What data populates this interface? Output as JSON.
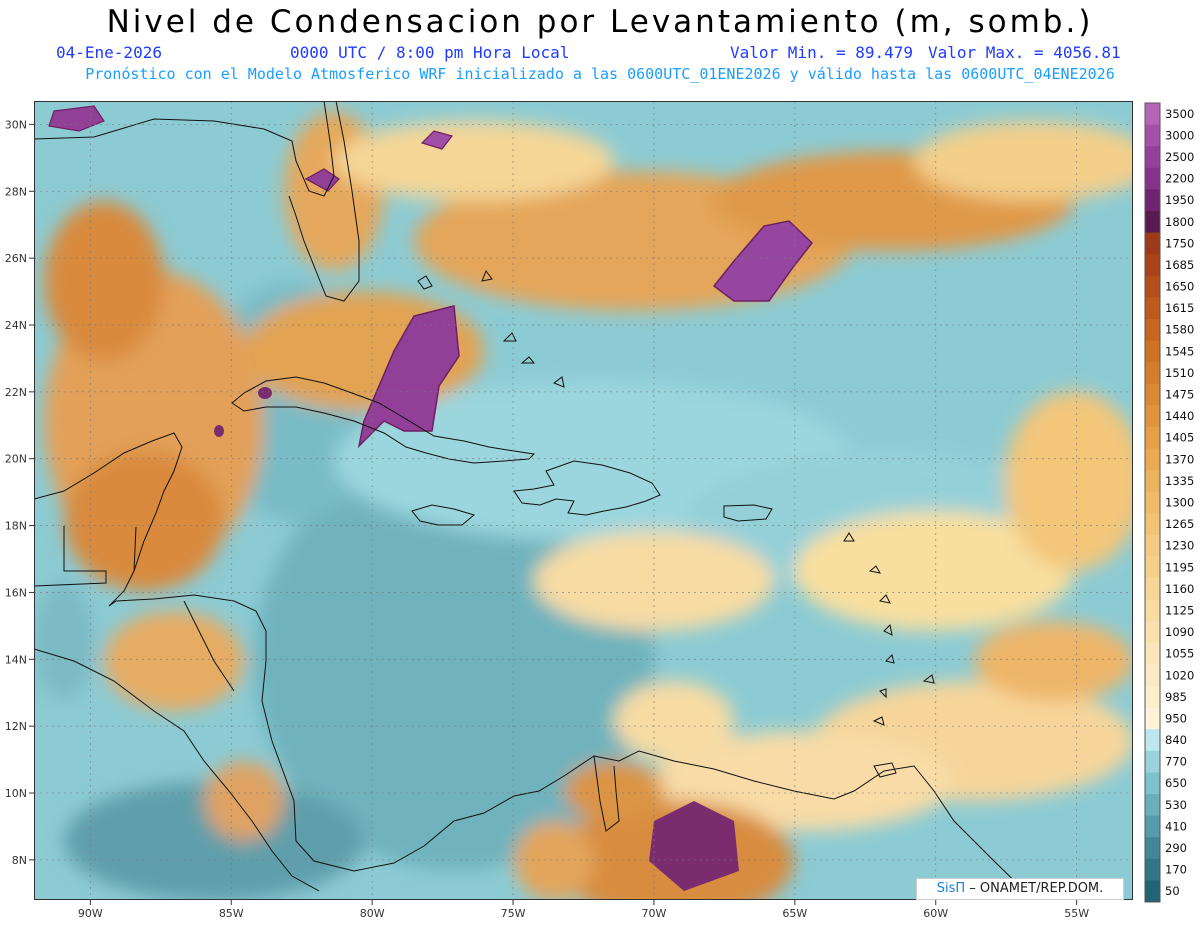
{
  "header": {
    "title": "Nivel de Condensacion por Levantamiento (m, somb.)",
    "date": "04-Ene-2026",
    "time": "0000 UTC / 8:00 pm Hora Local",
    "min_label": "Valor Min. = 89.479",
    "max_label": "Valor Max. = 4056.81",
    "subtitle": "Pronóstico con el Modelo Atmosferico WRF inicializado a las 0600UTC_01ENE2026 y válido hasta las  0600UTC_04ENE2026"
  },
  "map": {
    "lon_range": [
      -92,
      -53
    ],
    "lat_range": [
      6.8,
      30.7
    ],
    "lon_ticks": [
      "90W",
      "85W",
      "80W",
      "75W",
      "70W",
      "65W",
      "60W",
      "55W"
    ],
    "lat_ticks": [
      "8N",
      "10N",
      "12N",
      "14N",
      "16N",
      "18N",
      "20N",
      "22N",
      "24N",
      "26N",
      "28N",
      "30N"
    ]
  },
  "colorbar": {
    "labels": [
      "3500",
      "3000",
      "2500",
      "2200",
      "1950",
      "1800",
      "1750",
      "1685",
      "1650",
      "1615",
      "1580",
      "1545",
      "1510",
      "1475",
      "1440",
      "1405",
      "1370",
      "1335",
      "1300",
      "1265",
      "1230",
      "1195",
      "1160",
      "1125",
      "1090",
      "1055",
      "1020",
      "985",
      "950",
      "840",
      "770",
      "650",
      "530",
      "410",
      "290",
      "170",
      "50"
    ],
    "colors": [
      "#b565b5",
      "#a350a6",
      "#934198",
      "#853388",
      "#6e2470",
      "#591a4d",
      "#9c3a1a",
      "#a84418",
      "#b34f1a",
      "#be5a1c",
      "#c6661f",
      "#ce7224",
      "#d47d2a",
      "#da8933",
      "#e0953c",
      "#e5a046",
      "#e9aa52",
      "#ecb35e",
      "#efbb69",
      "#f1c374",
      "#f3ca80",
      "#f5d08b",
      "#f6d696",
      "#f8dca2",
      "#f9e1ad",
      "#fae6b8",
      "#fbeac3",
      "#fcefcd",
      "#fdf3d8",
      "#bde7ee",
      "#99d3dc",
      "#80c2cc",
      "#6aafbb",
      "#569ba9",
      "#438797",
      "#337585",
      "#226474"
    ]
  },
  "credit": {
    "brand": "SisΠ",
    "org": "– ONAMET/REP.DOM."
  }
}
